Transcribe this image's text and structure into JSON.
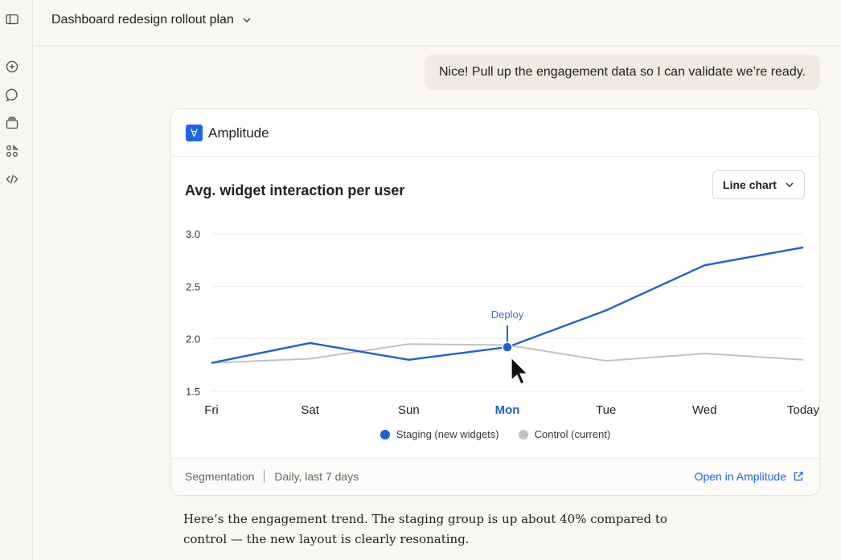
{
  "conversation": {
    "title": "Dashboard redesign rollout plan",
    "user_message": "Nice! Pull up the engagement data so I can validate we’re ready.",
    "assistant_reply": "Here’s the engagement trend. The staging group is up about 40% compared to control — the new layout is clearly resonating."
  },
  "sidebar": {
    "icons": [
      "sidebar-toggle-icon",
      "new-chat-icon",
      "search-icon",
      "projects-icon",
      "artifacts-icon",
      "code-icon"
    ]
  },
  "card": {
    "app_name": "Amplitude",
    "chart_type_label": "Line chart",
    "footer_type": "Segmentation",
    "footer_range": "Daily, last 7 days",
    "open_link": "Open in Amplitude"
  },
  "chart_data": {
    "type": "line",
    "title": "Avg. widget interaction per user",
    "categories": [
      "Fri",
      "Sat",
      "Sun",
      "Mon",
      "Tue",
      "Wed",
      "Today"
    ],
    "highlight_category": "Mon",
    "ylim": [
      1.5,
      3.0
    ],
    "yticks": [
      "1.5",
      "2.0",
      "2.5",
      "3.0"
    ],
    "grid": true,
    "legend_position": "bottom",
    "annotation": {
      "label": "Deploy",
      "category": "Mon"
    },
    "series": [
      {
        "name": "Staging (new widgets)",
        "color": "#1f5fd6",
        "values": [
          1.77,
          1.96,
          1.8,
          1.92,
          2.27,
          2.7,
          2.87
        ]
      },
      {
        "name": "Control (current)",
        "color": "#c2c2c2",
        "values": [
          1.77,
          1.81,
          1.95,
          1.94,
          1.79,
          1.86,
          1.8
        ]
      }
    ]
  }
}
